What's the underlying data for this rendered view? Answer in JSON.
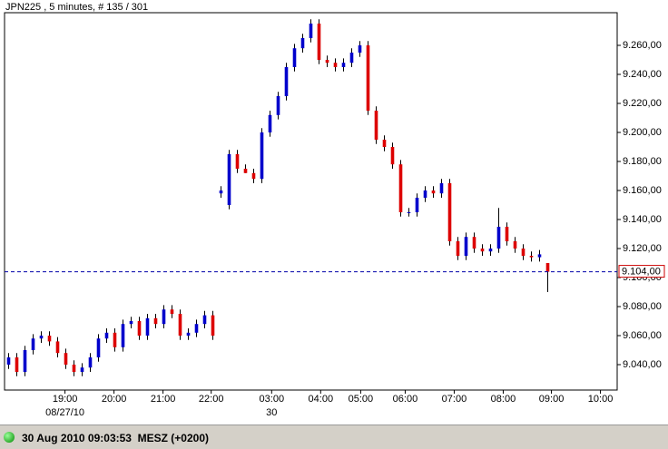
{
  "chart_data": {
    "type": "candlestick",
    "title": "JPN225 , 5 minutes, # 135 / 301",
    "up_color": "#0000cc",
    "down_color": "#dd0000",
    "xlim": [
      -1,
      149
    ],
    "ylim": [
      9022.5,
      9282.5
    ],
    "yticks": [
      {
        "value": 9040,
        "label": "9.040,00"
      },
      {
        "value": 9060,
        "label": "9.060,00"
      },
      {
        "value": 9080,
        "label": "9.080,00"
      },
      {
        "value": 9100,
        "label": "9.100,00"
      },
      {
        "value": 9120,
        "label": "9.120,00"
      },
      {
        "value": 9140,
        "label": "9.140,00"
      },
      {
        "value": 9160,
        "label": "9.160,00"
      },
      {
        "value": 9180,
        "label": "9.180,00"
      },
      {
        "value": 9200,
        "label": "9.200,00"
      },
      {
        "value": 9220,
        "label": "9.220,00"
      },
      {
        "value": 9240,
        "label": "9.240,00"
      },
      {
        "value": 9260,
        "label": "9.260,00"
      }
    ],
    "xticks": [
      {
        "value": 13.8,
        "label": "19:00"
      },
      {
        "value": 25.8,
        "label": "20:00"
      },
      {
        "value": 37.8,
        "label": "21:00"
      },
      {
        "value": 49.6,
        "label": "22:00"
      },
      {
        "value": 64.4,
        "label": "03:00"
      },
      {
        "value": 76.4,
        "label": "04:00"
      },
      {
        "value": 86.2,
        "label": "05:00"
      },
      {
        "value": 97.1,
        "label": "06:00"
      },
      {
        "value": 109.1,
        "label": "07:00"
      },
      {
        "value": 121.1,
        "label": "08:00"
      },
      {
        "value": 132.9,
        "label": "09:00"
      },
      {
        "value": 144.9,
        "label": "10:00"
      }
    ],
    "xdate_labels": [
      {
        "value": 13.8,
        "label": "08/27/10"
      },
      {
        "value": 64.4,
        "label": "30"
      }
    ],
    "current_price": {
      "value": 9104,
      "label": "9.104,00",
      "color": "#0000aa"
    },
    "x": [
      0,
      2,
      4,
      6,
      8,
      10,
      12,
      14,
      16,
      18,
      20,
      22,
      24,
      26,
      28,
      30,
      32,
      34,
      36,
      38,
      40,
      42,
      44,
      46,
      48,
      50,
      52,
      54,
      56,
      58,
      60,
      62,
      64,
      66,
      68,
      70,
      72,
      74,
      76,
      78,
      80,
      82,
      84,
      86,
      88,
      90,
      92,
      94,
      96,
      98,
      100,
      102,
      104,
      106,
      108,
      110,
      112,
      114,
      116,
      118,
      120,
      122,
      124,
      126,
      128,
      130,
      132
    ],
    "open": [
      9040,
      9045,
      9035,
      9050,
      9058,
      9060,
      9056,
      9048,
      9040,
      9035,
      9038,
      9045,
      9058,
      9062,
      9052,
      9068,
      9070,
      9060,
      9072,
      9068,
      9078,
      9075,
      9060,
      9062,
      9068,
      9074,
      9158,
      9150,
      9185,
      9175,
      9172,
      9168,
      9200,
      9212,
      9225,
      9245,
      9258,
      9265,
      9275,
      9250,
      9248,
      9245,
      9248,
      9255,
      9260,
      9215,
      9195,
      9190,
      9178,
      9145,
      9145,
      9155,
      9160,
      9158,
      9165,
      9125,
      9115,
      9128,
      9120,
      9118,
      9120,
      9135,
      9125,
      9120,
      9115,
      9114,
      9110
    ],
    "high": [
      9048,
      9048,
      9053,
      9061,
      9063,
      9063,
      9059,
      9051,
      9043,
      9041,
      9048,
      9061,
      9065,
      9065,
      9071,
      9073,
      9073,
      9075,
      9075,
      9081,
      9081,
      9078,
      9065,
      9071,
      9077,
      9077,
      9163,
      9188,
      9188,
      9178,
      9175,
      9203,
      9215,
      9228,
      9248,
      9261,
      9268,
      9278,
      9278,
      9253,
      9251,
      9251,
      9258,
      9263,
      9263,
      9218,
      9198,
      9193,
      9181,
      9148,
      9158,
      9163,
      9163,
      9168,
      9168,
      9128,
      9131,
      9131,
      9123,
      9123,
      9148,
      9138,
      9128,
      9123,
      9118,
      9119,
      9110
    ],
    "low": [
      9037,
      9032,
      9032,
      9047,
      9055,
      9053,
      9045,
      9037,
      9032,
      9032,
      9035,
      9042,
      9055,
      9049,
      9049,
      9065,
      9057,
      9057,
      9065,
      9065,
      9072,
      9057,
      9057,
      9059,
      9065,
      9057,
      9155,
      9147,
      9172,
      9172,
      9165,
      9165,
      9197,
      9209,
      9222,
      9242,
      9255,
      9262,
      9247,
      9245,
      9242,
      9242,
      9245,
      9252,
      9212,
      9192,
      9187,
      9175,
      9142,
      9142,
      9142,
      9152,
      9155,
      9155,
      9122,
      9112,
      9112,
      9117,
      9115,
      9115,
      9117,
      9122,
      9117,
      9112,
      9111,
      9111,
      9090
    ],
    "close": [
      9045,
      9035,
      9050,
      9058,
      9060,
      9056,
      9048,
      9040,
      9035,
      9038,
      9045,
      9058,
      9062,
      9052,
      9068,
      9070,
      9060,
      9072,
      9068,
      9078,
      9075,
      9060,
      9062,
      9068,
      9074,
      9060,
      9160,
      9185,
      9175,
      9172,
      9168,
      9200,
      9212,
      9225,
      9245,
      9258,
      9265,
      9275,
      9250,
      9248,
      9245,
      9248,
      9255,
      9260,
      9215,
      9195,
      9190,
      9178,
      9145,
      9145,
      9155,
      9160,
      9158,
      9165,
      9125,
      9115,
      9128,
      9120,
      9118,
      9120,
      9135,
      9125,
      9120,
      9115,
      9114,
      9116,
      9104
    ]
  },
  "status_bar": {
    "text": "30 Aug 2010 09:03:53  MESZ (+0200)"
  }
}
